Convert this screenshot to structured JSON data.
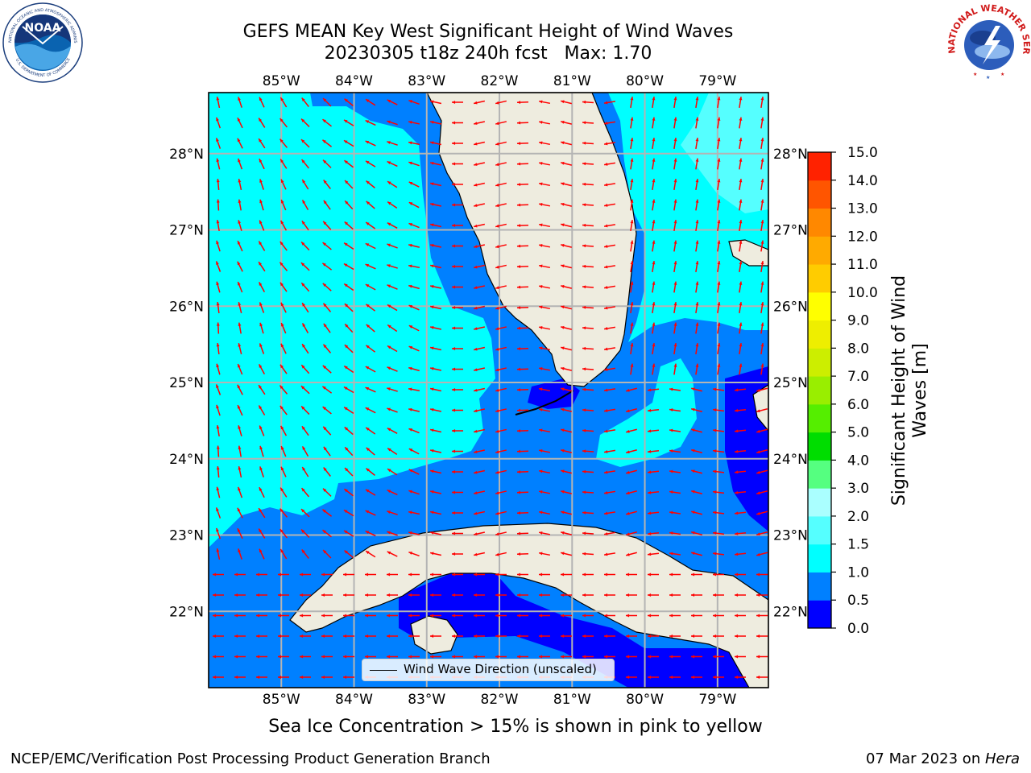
{
  "title": {
    "line1": "GEFS MEAN Key West Significant Height of Wind Waves",
    "line2": "20230305 t18z 240h fcst   Max: 1.70"
  },
  "map": {
    "lon_range": [
      -86.0,
      -78.3
    ],
    "lat_range": [
      21.0,
      28.8
    ],
    "lon_ticks": [
      "85°W",
      "84°W",
      "83°W",
      "82°W",
      "81°W",
      "80°W",
      "79°W"
    ],
    "lat_ticks": [
      "22°N",
      "23°N",
      "24°N",
      "25°N",
      "26°N",
      "27°N",
      "28°N"
    ],
    "land_color": "#eeecdf",
    "grid_color": "#b4b4b4",
    "arrow_color": "#ff0000",
    "legend_label": "Wind Wave Direction (unscaled)"
  },
  "colorbar": {
    "label_line1": "Significant Height of Wind",
    "label_line2": "Waves [m]",
    "tick_labels": [
      "0.0",
      "0.5",
      "1.0",
      "1.5",
      "2.0",
      "3.0",
      "4.0",
      "5.0",
      "6.0",
      "7.0",
      "8.0",
      "9.0",
      "10.0",
      "11.0",
      "12.0",
      "13.0",
      "14.0",
      "15.0"
    ],
    "colors": [
      "#0000ff",
      "#0080ff",
      "#00ffff",
      "#55ffff",
      "#aaffff",
      "#55ff80",
      "#00dd00",
      "#55ee00",
      "#99ee00",
      "#ccee00",
      "#eeee00",
      "#ffff00",
      "#ffcc00",
      "#ffaa00",
      "#ff8800",
      "#ff5500",
      "#ff2200"
    ]
  },
  "caption": "Sea Ice Concentration > 15% is shown in pink to yellow",
  "footer": {
    "left": "NCEP/EMC/Verification Post Processing Product Generation Branch",
    "right_prefix": "07 Mar 2023 on ",
    "right_italic": "Hera"
  },
  "logos": {
    "noaa_text": "NOAA",
    "noaa_ring_text": "NATIONAL OCEANIC AND ATMOSPHERIC ADMINISTRATION",
    "noaa_ring_text_bottom": "U.S. DEPARTMENT OF COMMERCE",
    "nws_ring_text": "NATIONAL WEATHER SERVICE"
  }
}
